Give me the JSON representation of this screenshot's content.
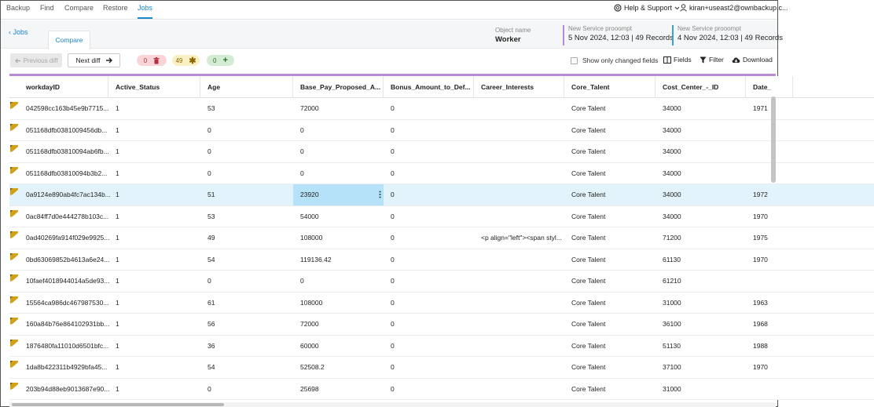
{
  "nav": {
    "tabs": [
      {
        "label": "Backup"
      },
      {
        "label": "Find"
      },
      {
        "label": "Compare"
      },
      {
        "label": "Restore"
      },
      {
        "label": "Jobs"
      }
    ],
    "active_tab": "Jobs",
    "help_label": "Help & Support",
    "user_label": "kiran+useast2@ownbackup.c..."
  },
  "subheader": {
    "back_label": "Jobs",
    "compare_tab": "Compare",
    "object_label": "Object name",
    "object_name": "Worker",
    "snapshot1": {
      "name": "New Service prooompt",
      "info": "5 Nov 2024, 12:03 | 49 Records",
      "color": "#b98bd6"
    },
    "snapshot2": {
      "name": "New Service prooompt",
      "info": "4 Nov 2024, 12:03 | 49 Records",
      "color": "#3aa0d8"
    }
  },
  "toolbar": {
    "prev_label": "Previous diff",
    "next_label": "Next diff",
    "removed_count": "0",
    "changed_count": "49",
    "added_count": "0",
    "show_changed_label": "Show only changed fields",
    "fields_label": "Fields",
    "filter_label": "Filter",
    "download_label": "Download"
  },
  "grid": {
    "columns": [
      "workdayID",
      "Active_Status",
      "Age",
      "Base_Pay_Proposed_A...",
      "Bonus_Amount_to_Def...",
      "Career_Interests",
      "Core_Talent",
      "Cost_Center_-_ID",
      "Date_"
    ],
    "rows": [
      [
        "042598cc163b45e9b7715...",
        "1",
        "53",
        "72000",
        "0",
        "",
        "Core Talent",
        "34000",
        "1971"
      ],
      [
        "051168dfb0381009456db...",
        "1",
        "0",
        "0",
        "0",
        "",
        "Core Talent",
        "34000",
        ""
      ],
      [
        "051168dfb03810094ab6fb...",
        "1",
        "0",
        "0",
        "0",
        "",
        "Core Talent",
        "34000",
        ""
      ],
      [
        "051168dfb03810094b3b2...",
        "1",
        "0",
        "0",
        "0",
        "",
        "Core Talent",
        "34000",
        ""
      ],
      [
        "0a9124e890ab4fc7ac134b...",
        "1",
        "51",
        "23920",
        "0",
        "",
        "Core Talent",
        "34000",
        "1972"
      ],
      [
        "0ac84ff7d0e444278b103c...",
        "1",
        "53",
        "54000",
        "0",
        "",
        "Core Talent",
        "34000",
        "1970"
      ],
      [
        "0ad40269fa914f029e9925...",
        "1",
        "49",
        "108000",
        "0",
        "<p align=\"left\"><span styl...",
        "Core Talent",
        "71200",
        "1975"
      ],
      [
        "0bd63069852b4613a6e24...",
        "1",
        "54",
        "119136.42",
        "0",
        "",
        "Core Talent",
        "61130",
        "1970"
      ],
      [
        "10faef4018944014a5de93...",
        "1",
        "0",
        "0",
        "0",
        "",
        "Core Talent",
        "61210",
        ""
      ],
      [
        "15564ca986dc467987530...",
        "1",
        "61",
        "108000",
        "0",
        "",
        "Core Talent",
        "31000",
        "1963"
      ],
      [
        "160a84b76e864102931bb...",
        "1",
        "56",
        "72000",
        "0",
        "",
        "Core Talent",
        "36100",
        "1968"
      ],
      [
        "1876480fa11010d6501bfc...",
        "1",
        "36",
        "60000",
        "0",
        "",
        "Core Talent",
        "51130",
        "1988"
      ],
      [
        "1da8b422311b4929bfa45...",
        "1",
        "54",
        "52508.2",
        "0",
        "",
        "Core Talent",
        "37100",
        "1970"
      ],
      [
        "203b94d88eb9013687e90...",
        "1",
        "0",
        "25698",
        "0",
        "",
        "Core Talent",
        "31000",
        ""
      ]
    ],
    "selected_row": 4,
    "highlighted_column": 3
  },
  "colors": {
    "accent": "#1a88c9",
    "changed_flag": "#d4a017",
    "selected_row": "#e3f3fc",
    "highlighted_cell": "#b5e2f8"
  }
}
